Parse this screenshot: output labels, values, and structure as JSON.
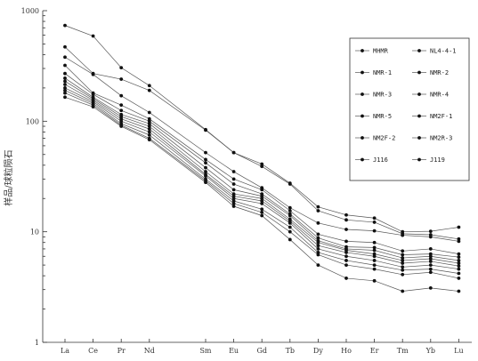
{
  "chart_data": {
    "type": "line",
    "xlabel": "",
    "ylabel": "样品/球粒陨石",
    "y_scale": "log",
    "ylim": [
      1,
      1000
    ],
    "y_ticks": [
      1,
      10,
      100,
      1000
    ],
    "y_tick_labels": [
      "1",
      "10",
      "100",
      "1000"
    ],
    "categories": [
      "La",
      "Ce",
      "Pr",
      "Nd",
      "Sm",
      "Eu",
      "Gd",
      "Tb",
      "Dy",
      "Ho",
      "Er",
      "Tm",
      "Yb",
      "Lu"
    ],
    "x_positions": [
      0,
      1,
      2,
      3,
      5,
      6,
      7,
      8,
      9,
      10,
      11,
      12,
      13,
      14
    ],
    "grid": false,
    "legend_position": "top-right",
    "colors": {
      "line": "#555555",
      "marker": "#111111",
      "axis": "#333333"
    },
    "series": [
      {
        "name": "MHMR",
        "values": [
          735,
          590,
          305,
          210,
          84,
          52,
          41,
          27.5,
          16.8,
          14.2,
          13.3,
          10,
          10.1,
          11
        ]
      },
      {
        "name": "NL4-4-1",
        "values": [
          470,
          270,
          240,
          190,
          83,
          52,
          39,
          27,
          15.5,
          12.8,
          12.2,
          9.6,
          9.4,
          8.6
        ]
      },
      {
        "name": "NMR-1",
        "values": [
          380,
          265,
          170,
          120,
          52,
          35,
          25,
          16.5,
          12,
          10.5,
          10.2,
          9.3,
          9.0,
          8.2
        ]
      },
      {
        "name": "NMR-2",
        "values": [
          320,
          180,
          140,
          105,
          45,
          30,
          24,
          15.5,
          9.5,
          8.2,
          8.0,
          6.7,
          7.0,
          6.3
        ]
      },
      {
        "name": "NMR-3",
        "values": [
          270,
          175,
          125,
          100,
          42,
          27,
          22,
          14.5,
          8.8,
          7.3,
          7.2,
          6.2,
          6.3,
          5.9
        ]
      },
      {
        "name": "NMR-4",
        "values": [
          245,
          165,
          115,
          95,
          38,
          24,
          21,
          14,
          8.3,
          7.0,
          6.8,
          5.8,
          6.0,
          5.5
        ]
      },
      {
        "name": "NMR-5",
        "values": [
          230,
          160,
          110,
          90,
          35,
          22,
          20,
          13,
          8.0,
          6.8,
          6.3,
          5.5,
          5.7,
          5.2
        ]
      },
      {
        "name": "NM2F-1",
        "values": [
          215,
          155,
          105,
          85,
          33,
          21,
          19,
          12.5,
          7.5,
          6.5,
          6.0,
          5.2,
          5.4,
          4.9
        ]
      },
      {
        "name": "NM2F-2",
        "values": [
          200,
          150,
          100,
          80,
          32,
          20,
          18,
          12,
          7.0,
          6.0,
          5.5,
          4.8,
          5.0,
          4.6
        ]
      },
      {
        "name": "NM2R-3",
        "values": [
          190,
          145,
          95,
          75,
          30,
          19,
          16,
          11,
          6.5,
          5.5,
          5.0,
          4.5,
          4.6,
          4.2
        ]
      },
      {
        "name": "J116",
        "values": [
          180,
          140,
          92,
          70,
          29,
          18,
          15,
          10,
          6.2,
          5.0,
          4.6,
          4.1,
          4.3,
          3.8
        ]
      },
      {
        "name": "J119",
        "values": [
          165,
          135,
          90,
          68,
          28,
          17,
          14,
          8.5,
          5.0,
          3.8,
          3.6,
          2.9,
          3.1,
          2.9
        ]
      }
    ]
  }
}
